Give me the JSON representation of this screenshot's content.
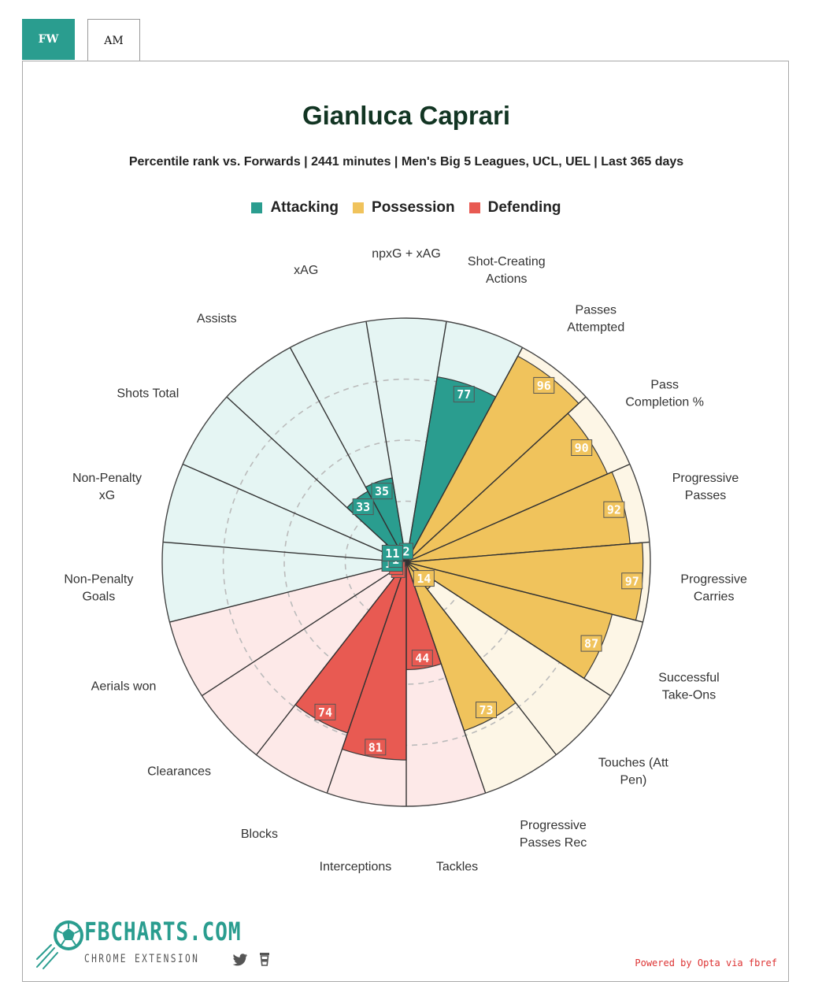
{
  "tabs": [
    {
      "label": "FW",
      "active": true
    },
    {
      "label": "AM",
      "active": false
    }
  ],
  "colors": {
    "attacking": "#2a9d8f",
    "possession": "#f0c35c",
    "defending": "#e85a52"
  },
  "chart_data": {
    "type": "polar-bar",
    "title": "Gianluca Caprari",
    "subtitle": "Percentile rank vs. Forwards | 2441 minutes | Men's Big 5 Leagues, UCL, UEL | Last 365 days",
    "rmax": 100,
    "legend": [
      "Attacking",
      "Possession",
      "Defending"
    ],
    "legend_position": "top",
    "categories": [
      {
        "label": "npxG + xAG",
        "value": 2,
        "group": "Attacking"
      },
      {
        "label": "Shot-Creating Actions",
        "value": 77,
        "group": "Attacking"
      },
      {
        "label": "Passes Attempted",
        "value": 96,
        "group": "Possession"
      },
      {
        "label": "Pass Completion %",
        "value": 90,
        "group": "Possession"
      },
      {
        "label": "Progressive Passes",
        "value": 92,
        "group": "Possession"
      },
      {
        "label": "Progressive Carries",
        "value": 97,
        "group": "Possession"
      },
      {
        "label": "Successful Take-Ons",
        "value": 87,
        "group": "Possession"
      },
      {
        "label": "Touches (Att Pen)",
        "value": 14,
        "group": "Possession"
      },
      {
        "label": "Progressive Passes Rec",
        "value": 73,
        "group": "Possession"
      },
      {
        "label": "Tackles",
        "value": 44,
        "group": "Defending"
      },
      {
        "label": "Interceptions",
        "value": 81,
        "group": "Defending"
      },
      {
        "label": "Blocks",
        "value": 74,
        "group": "Defending"
      },
      {
        "label": "Clearances",
        "value": 3,
        "group": "Defending"
      },
      {
        "label": "Aerials won",
        "value": 2,
        "group": "Defending"
      },
      {
        "label": "Non-Penalty Goals",
        "value": 10,
        "group": "Attacking"
      },
      {
        "label": "Non-Penalty xG",
        "value": 1,
        "group": "Attacking"
      },
      {
        "label": "Shots Total",
        "value": 11,
        "group": "Attacking"
      },
      {
        "label": "Assists",
        "value": 33,
        "group": "Attacking"
      },
      {
        "label": "xAG",
        "value": 35,
        "group": "Attacking"
      }
    ]
  },
  "branding": {
    "logo_text": "FBCHARTS.COM",
    "logo_sub": "CHROME EXTENSION",
    "powered_by": "Powered by Opta via fbref"
  }
}
